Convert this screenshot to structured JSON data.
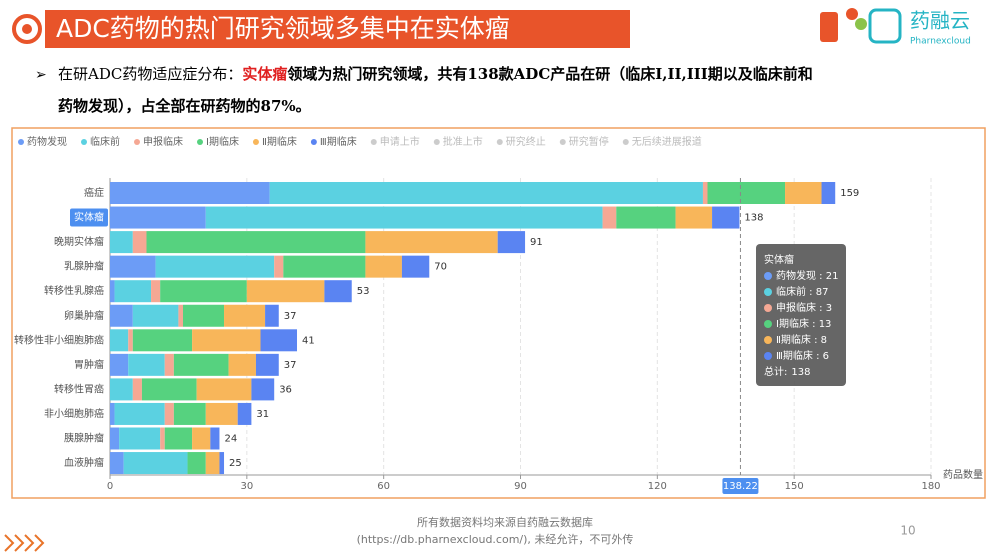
{
  "header": {
    "title": "ADC药物的热门研究领域多集中在实体瘤",
    "logo_text": "药融云",
    "logo_sub": "Pharnexcloud"
  },
  "bullet": {
    "prefix": "在研ADC药物适应症分布：",
    "highlight": "实体瘤",
    "line1": "领域为热门研究领域，共有138款ADC产品在研（临床I,II,III期以及临床前和",
    "line2": "药物发现），占全部在研药物的87%。"
  },
  "chart_data": {
    "type": "bar",
    "orientation": "horizontal",
    "stacked": true,
    "categories": [
      "癌症",
      "实体瘤",
      "晚期实体瘤",
      "乳腺肿瘤",
      "转移性乳腺癌",
      "卵巢肿瘤",
      "转移性非小细胞肺癌",
      "胃肿瘤",
      "转移性胃癌",
      "非小细胞肺癌",
      "胰腺肿瘤",
      "血液肿瘤"
    ],
    "series": [
      {
        "name": "药物发现",
        "color": "#6c9cf6",
        "values": [
          35,
          21,
          0,
          10,
          1,
          5,
          0,
          4,
          0,
          1,
          2,
          3
        ]
      },
      {
        "name": "临床前",
        "color": "#5bd1e1",
        "values": [
          95,
          87,
          5,
          26,
          8,
          10,
          4,
          8,
          5,
          11,
          9,
          14
        ]
      },
      {
        "name": "申报临床",
        "color": "#f5a894",
        "values": [
          1,
          3,
          3,
          2,
          2,
          1,
          1,
          2,
          2,
          2,
          1,
          0
        ]
      },
      {
        "name": "Ⅰ期临床",
        "color": "#56d27f",
        "values": [
          17,
          13,
          48,
          18,
          19,
          9,
          13,
          12,
          12,
          7,
          6,
          4
        ]
      },
      {
        "name": "Ⅱ期临床",
        "color": "#f8b65a",
        "values": [
          8,
          8,
          29,
          8,
          17,
          9,
          15,
          6,
          12,
          7,
          4,
          3
        ]
      },
      {
        "name": "Ⅲ期临床",
        "color": "#5a84f2",
        "values": [
          3,
          6,
          6,
          6,
          6,
          3,
          8,
          5,
          5,
          3,
          2,
          1
        ]
      }
    ],
    "totals": [
      159,
      138,
      91,
      70,
      53,
      37,
      41,
      37,
      36,
      31,
      24,
      25
    ],
    "inactive_legend": [
      "申请上市",
      "批准上市",
      "研究终止",
      "研究暂停",
      "无后续进展报道"
    ],
    "legend": "top-left",
    "x_label": "药品数量",
    "xlim": [
      0,
      180
    ],
    "xticks": [
      0,
      30,
      60,
      90,
      120,
      150,
      180
    ],
    "grid": true,
    "highlight_category": 1,
    "pointer": {
      "value": 138.22
    },
    "tooltip": {
      "title": "实体瘤",
      "separator": " : ",
      "total_label": "总计:"
    }
  },
  "footer": {
    "source": "所有数据资料均来源自药融云数据库",
    "copyright": "(https://db.pharnexcloud.com/), 未经允许，不可外传",
    "page": "10"
  }
}
